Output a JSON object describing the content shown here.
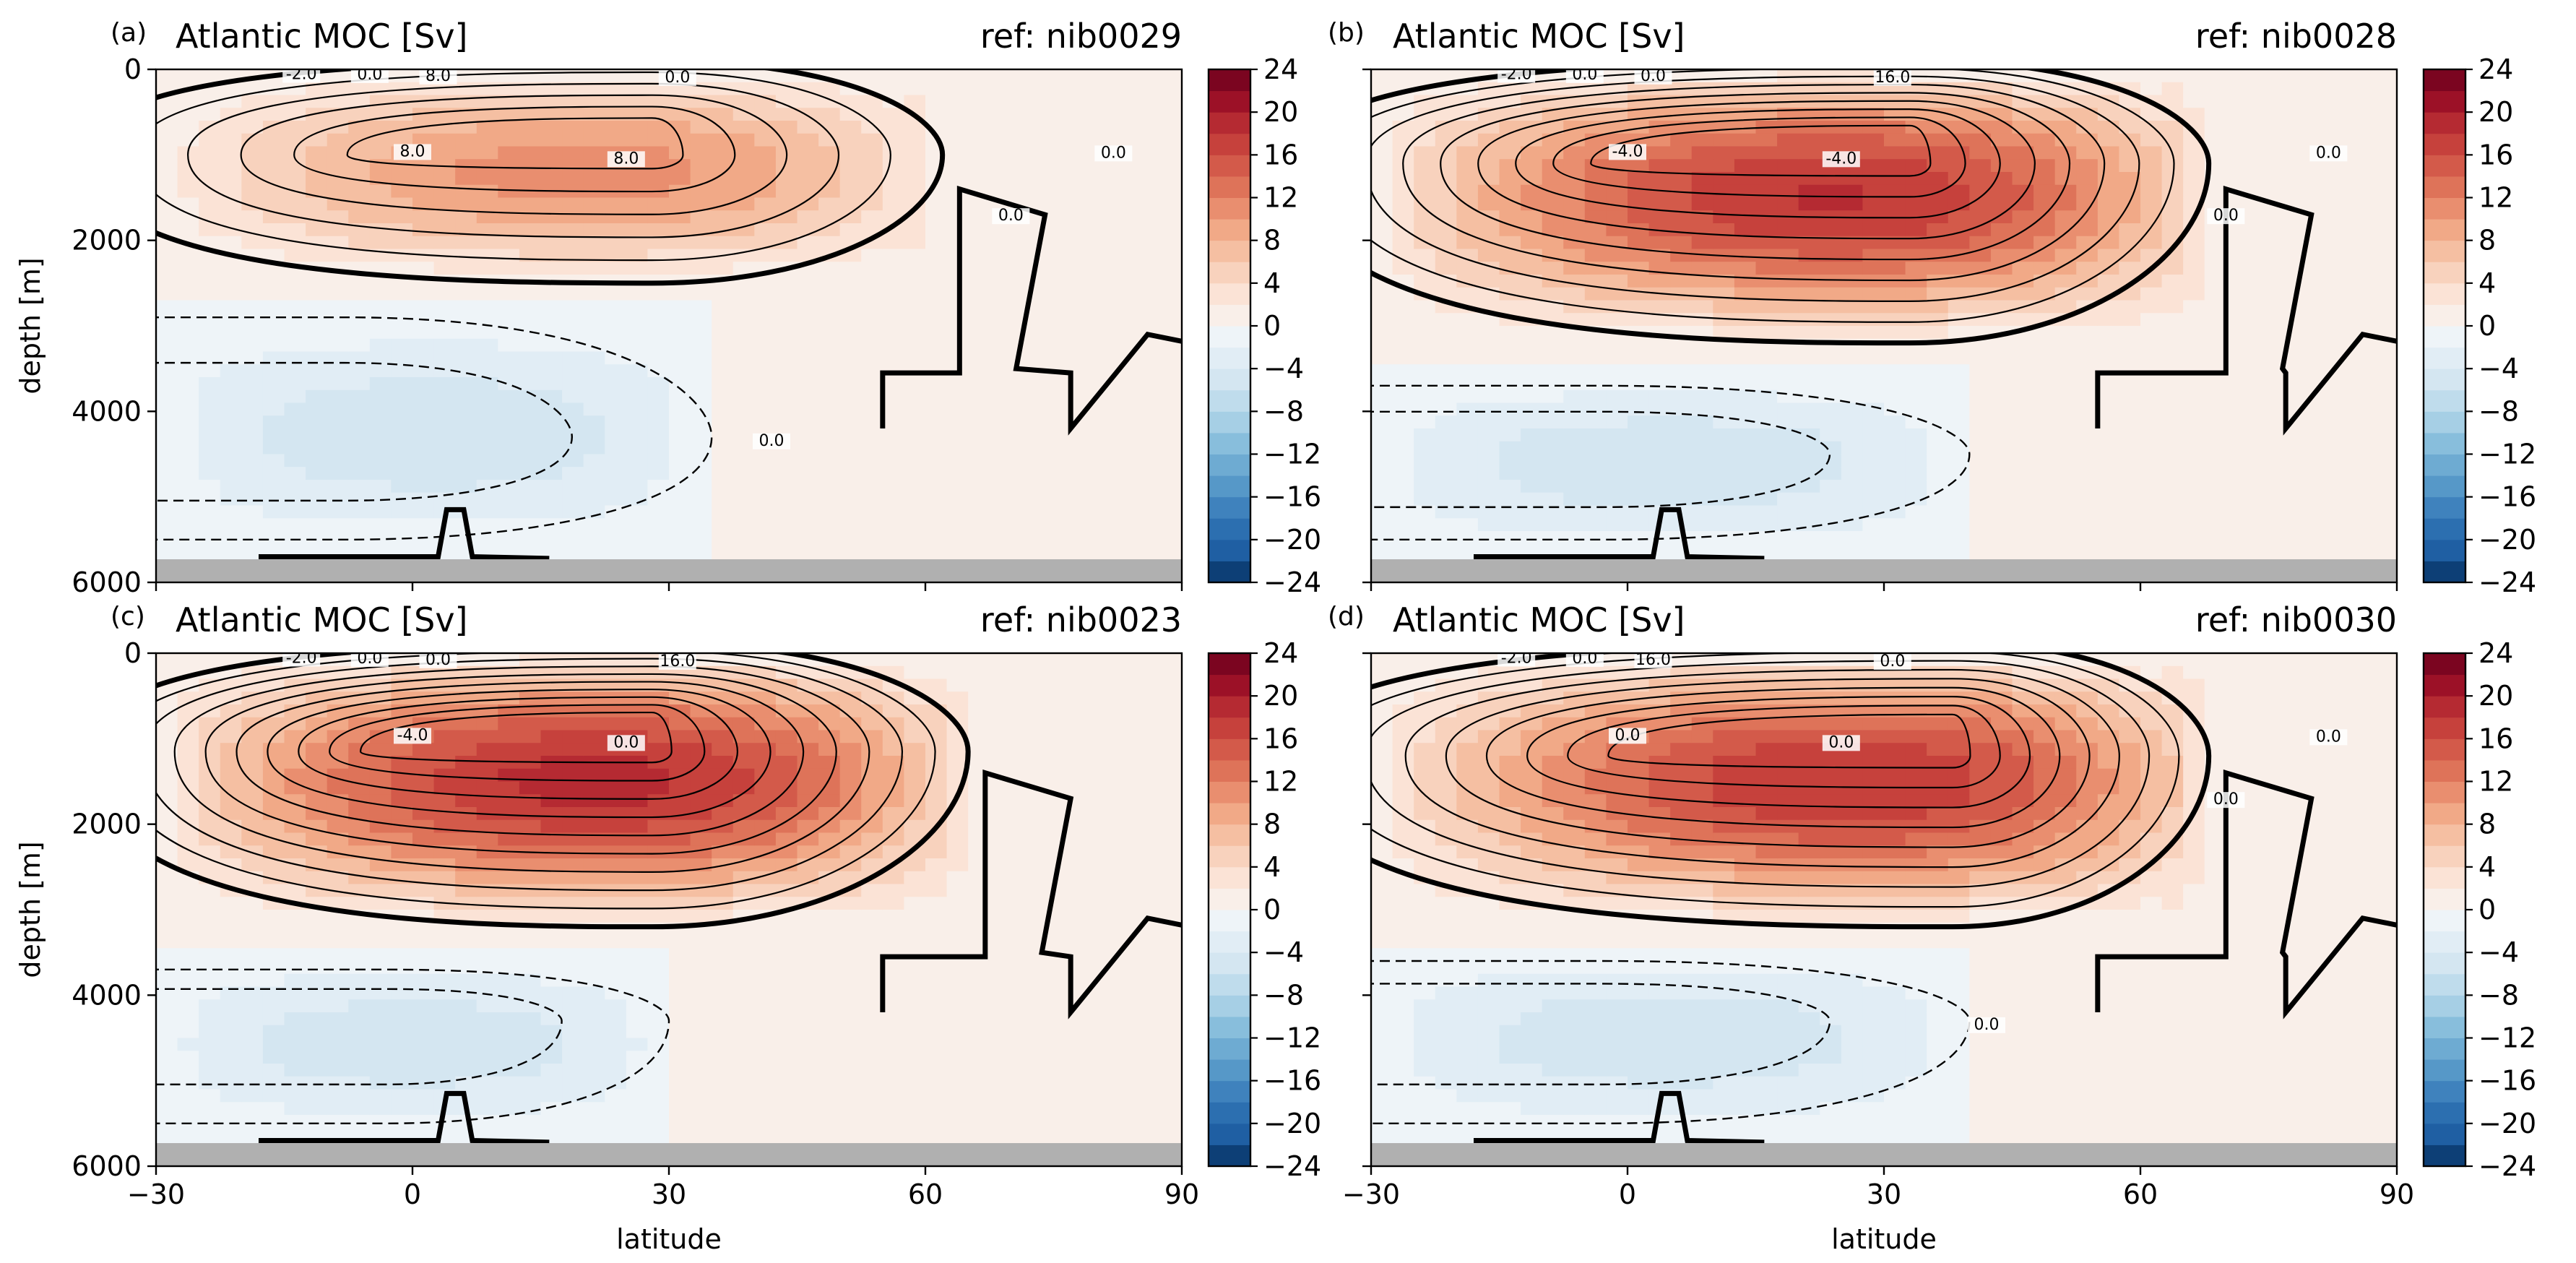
{
  "figure": {
    "title_left": "Atlantic MOC [Sv]",
    "xlabel": "latitude",
    "ylabel": "depth [m]"
  },
  "colormap": {
    "name": "RdBu_r",
    "levels": [
      -24,
      -22,
      -20,
      -18,
      -16,
      -14,
      -12,
      -10,
      -8,
      -6,
      -4,
      -2,
      0,
      2,
      4,
      6,
      8,
      10,
      12,
      14,
      16,
      18,
      20,
      22,
      24
    ],
    "colors": [
      "#0d3f76",
      "#1f5fa3",
      "#2c6fb0",
      "#3f82bd",
      "#5698c8",
      "#6eabd2",
      "#88bedc",
      "#a6cfe5",
      "#bfdcec",
      "#d4e6f1",
      "#e1edf5",
      "#eef4f8",
      "#f9efe9",
      "#fbe3d6",
      "#f8d2bd",
      "#f5bfa2",
      "#f1a987",
      "#e98e6f",
      "#de7359",
      "#d35a4a",
      "#c6413c",
      "#b52a32",
      "#9c1127",
      "#7b0520"
    ],
    "ticks": [
      24,
      20,
      16,
      12,
      8,
      4,
      0,
      -4,
      -8,
      -12,
      -16,
      -20,
      -24
    ]
  },
  "chart_data": [
    {
      "panel": "(a)",
      "ref": "ref: nib0029",
      "type": "heatmap",
      "xlim": [
        -30,
        90
      ],
      "ylim": [
        6000,
        0
      ],
      "xticks": [
        -30,
        0,
        30,
        60,
        90
      ],
      "yticks": [
        0,
        2000,
        4000,
        6000
      ],
      "show_xticklabels": false,
      "show_xlabel": false,
      "show_ylabel": true,
      "contour_interval": 2,
      "max_sv": 10,
      "upper_cell": {
        "center_lat": 28,
        "center_depth": 1000,
        "max": 10.5,
        "north_edge": 62,
        "bottom_depth": 2500
      },
      "lower_cell": {
        "center_lat": 0,
        "center_depth": 4300,
        "min": -5.5,
        "north_edge": 35,
        "top_depth": 2700
      },
      "contour_labels": [
        "-2.0",
        "0.0",
        "0.0",
        "8.0",
        "8.0",
        "8.0",
        "0.0",
        "0.0",
        "0.0"
      ]
    },
    {
      "panel": "(b)",
      "ref": "ref: nib0028",
      "type": "heatmap",
      "xlim": [
        -30,
        90
      ],
      "ylim": [
        6000,
        0
      ],
      "xticks": [
        -30,
        0,
        30,
        60,
        90
      ],
      "yticks": [
        0,
        2000,
        4000,
        6000
      ],
      "show_xticklabels": false,
      "show_xlabel": false,
      "show_ylabel": false,
      "contour_interval": 2,
      "max_sv": 18,
      "upper_cell": {
        "center_lat": 33,
        "center_depth": 1100,
        "max": 17.5,
        "north_edge": 68,
        "bottom_depth": 3200
      },
      "lower_cell": {
        "center_lat": 5,
        "center_depth": 4500,
        "min": -5.5,
        "north_edge": 40,
        "top_depth": 3500
      },
      "contour_labels": [
        "-2.0",
        "0.0",
        "16.0",
        "0.0",
        "-4.0",
        "-4.0",
        "0.0",
        "0.0"
      ]
    },
    {
      "panel": "(c)",
      "ref": "ref: nib0023",
      "type": "heatmap",
      "xlim": [
        -30,
        90
      ],
      "ylim": [
        6000,
        0
      ],
      "xticks": [
        -30,
        0,
        30,
        60,
        90
      ],
      "yticks": [
        0,
        2000,
        4000,
        6000
      ],
      "xticklabels": [
        "-30",
        "0",
        "30",
        "60",
        "90"
      ],
      "show_xticklabels": true,
      "show_xlabel": true,
      "show_ylabel": true,
      "contour_interval": 2,
      "max_sv": 18,
      "upper_cell": {
        "center_lat": 28,
        "center_depth": 1150,
        "max": 18,
        "north_edge": 65,
        "bottom_depth": 3200
      },
      "lower_cell": {
        "center_lat": 5,
        "center_depth": 4300,
        "min": -5.5,
        "north_edge": 30,
        "top_depth": 3500
      },
      "contour_labels": [
        "-2.0",
        "0.0",
        "16.0",
        "0.0",
        "-4.0",
        "0.0"
      ]
    },
    {
      "panel": "(d)",
      "ref": "ref: nib0030",
      "type": "heatmap",
      "xlim": [
        -30,
        90
      ],
      "ylim": [
        6000,
        0
      ],
      "xticks": [
        -30,
        0,
        30,
        60,
        90
      ],
      "yticks": [
        0,
        2000,
        4000,
        6000
      ],
      "xticklabels": [
        "-30",
        "0",
        "30",
        "60",
        "90"
      ],
      "show_xticklabels": true,
      "show_xlabel": true,
      "show_ylabel": false,
      "contour_interval": 2,
      "max_sv": 18,
      "upper_cell": {
        "center_lat": 38,
        "center_depth": 1200,
        "max": 17.5,
        "north_edge": 68,
        "bottom_depth": 3200
      },
      "lower_cell": {
        "center_lat": 5,
        "center_depth": 4300,
        "min": -5.5,
        "north_edge": 40,
        "top_depth": 3400
      },
      "contour_labels": [
        "-2.0",
        "0.0",
        "0.0",
        "16.0",
        "0.0",
        "0.0",
        "0.0",
        "0.0",
        "0.0"
      ]
    }
  ]
}
